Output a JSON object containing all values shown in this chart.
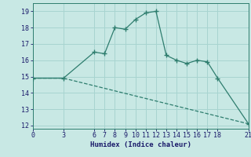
{
  "xlabel": "Humidex (Indice chaleur)",
  "line1_x": [
    0,
    3,
    6,
    7,
    8,
    9,
    10,
    11,
    12,
    13,
    14,
    15,
    16,
    17,
    18,
    21
  ],
  "line1_y": [
    14.9,
    14.9,
    16.5,
    16.4,
    18.0,
    17.9,
    18.5,
    18.9,
    19.0,
    16.3,
    16.0,
    15.8,
    16.0,
    15.9,
    14.9,
    12.1
  ],
  "line2_x": [
    0,
    3,
    21
  ],
  "line2_y": [
    14.9,
    14.9,
    12.1
  ],
  "line_color": "#2e7d6e",
  "bg_color": "#c8e8e4",
  "grid_color": "#a8d4d0",
  "xlim": [
    0,
    21
  ],
  "ylim": [
    11.8,
    19.5
  ],
  "xticks": [
    0,
    3,
    6,
    7,
    8,
    9,
    10,
    11,
    12,
    13,
    14,
    15,
    16,
    17,
    18,
    21
  ],
  "yticks": [
    12,
    13,
    14,
    15,
    16,
    17,
    18,
    19
  ],
  "xlabel_fontsize": 6.5,
  "tick_fontsize": 6
}
